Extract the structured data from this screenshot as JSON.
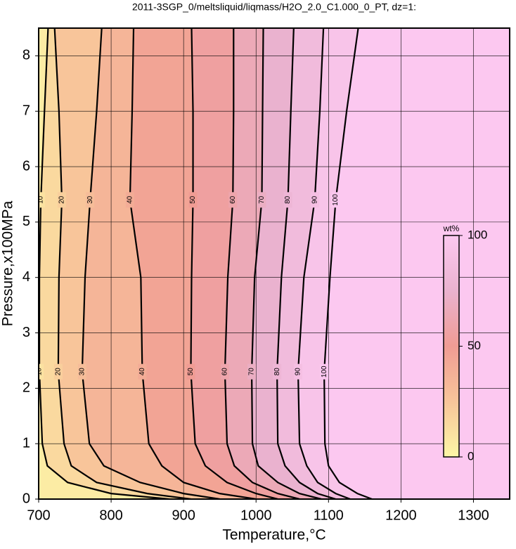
{
  "chart_data": {
    "type": "contour",
    "title": "2011-3SGP_0/meltsliquid/liqmass/H2O_2.0_C1.000_0_PT, dz=1:",
    "x_label": "Temperature,°C",
    "y_label": "Pressure,x100MPa",
    "xlim": [
      700,
      1350
    ],
    "ylim": [
      0,
      8.5
    ],
    "xticks": [
      700,
      800,
      900,
      1000,
      1100,
      1200,
      1300
    ],
    "yticks": [
      0,
      1,
      2,
      3,
      4,
      5,
      6,
      7,
      8
    ],
    "grid": true,
    "colormap": [
      "#fdf6a6",
      "#f8c59a",
      "#f09c94",
      "#eab2cf",
      "#fcc8f0"
    ],
    "colorbar": {
      "label": "wt%",
      "lim": [
        0,
        100
      ],
      "ticks": [
        0,
        50,
        100
      ]
    },
    "y": [
      0,
      0.1,
      0.3,
      0.6,
      1,
      2.3,
      4,
      5.4,
      7,
      8.5
    ],
    "contours": [
      {
        "level": 10,
        "x": [
          880,
          800,
          740,
          712,
          705,
          701,
          701,
          703,
          708,
          713
        ]
      },
      {
        "level": 20,
        "x": [
          910,
          850,
          780,
          745,
          735,
          727,
          728,
          732,
          728,
          722
        ]
      },
      {
        "level": 30,
        "x": [
          950,
          900,
          840,
          790,
          770,
          760,
          764,
          771,
          780,
          787
        ]
      },
      {
        "level": 40,
        "x": [
          1000,
          950,
          900,
          870,
          852,
          843,
          841,
          826,
          829,
          831
        ]
      },
      {
        "level": 50,
        "x": [
          1030,
          1000,
          960,
          930,
          916,
          910,
          911,
          913,
          913,
          911
        ]
      },
      {
        "level": 60,
        "x": [
          1060,
          1030,
          995,
          970,
          960,
          957,
          961,
          968,
          969,
          969
        ]
      },
      {
        "level": 70,
        "x": [
          1090,
          1060,
          1030,
          1003,
          995,
          994,
          998,
          1008,
          1009,
          1010
        ]
      },
      {
        "level": 80,
        "x": [
          1110,
          1085,
          1060,
          1040,
          1030,
          1029,
          1035,
          1044,
          1048,
          1052
        ]
      },
      {
        "level": 90,
        "x": [
          1130,
          1110,
          1085,
          1070,
          1060,
          1058,
          1066,
          1081,
          1088,
          1093
        ]
      },
      {
        "level": 100,
        "x": [
          1160,
          1140,
          1115,
          1100,
          1095,
          1094,
          1102,
          1110,
          1125,
          1141
        ]
      }
    ]
  }
}
